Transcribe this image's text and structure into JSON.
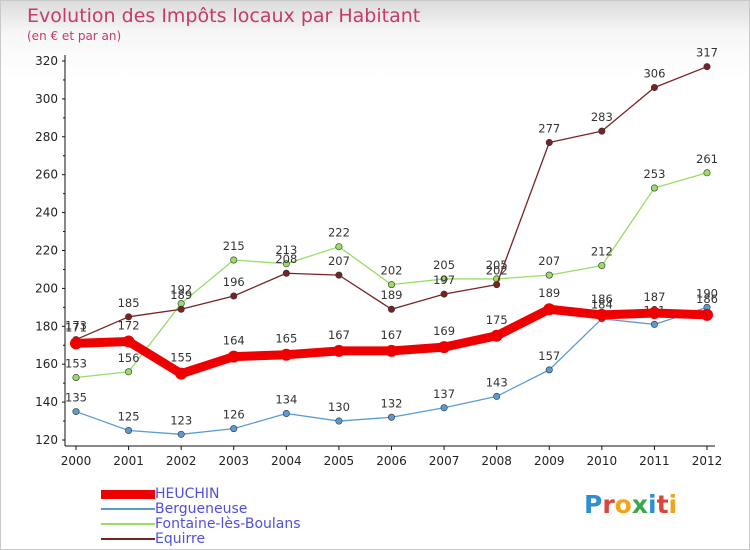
{
  "title": "Evolution des Impôts locaux par Habitant",
  "subtitle": "(en € et par an)",
  "logo": {
    "letters": [
      {
        "ch": "P",
        "color": "#2f8fd1"
      },
      {
        "ch": "r",
        "color": "#d8463c"
      },
      {
        "ch": "o",
        "color": "#f2a51b"
      },
      {
        "ch": "x",
        "color": "#3aa84a"
      },
      {
        "ch": "i",
        "color": "#2f8fd1"
      },
      {
        "ch": "t",
        "color": "#d8463c"
      },
      {
        "ch": "i",
        "color": "#f2a51b"
      }
    ]
  },
  "chart_data": {
    "type": "line",
    "title": "Evolution des Impôts locaux par Habitant",
    "subtitle": "(en € et par an)",
    "xlabel": "",
    "ylabel": "",
    "x": [
      "2000",
      "2001",
      "2002",
      "2003",
      "2004",
      "2005",
      "2006",
      "2007",
      "2008",
      "2009",
      "2010",
      "2011",
      "2012"
    ],
    "ylim": [
      120,
      320
    ],
    "yticks": [
      120,
      140,
      160,
      180,
      200,
      220,
      240,
      260,
      280,
      300,
      320
    ],
    "grid": false,
    "legend_position": "bottom-left",
    "series": [
      {
        "name": "HEUCHIN",
        "color": "#ee0000",
        "thick": true,
        "values": [
          171,
          172,
          155,
          164,
          165,
          167,
          167,
          169,
          175,
          189,
          186,
          187,
          186
        ]
      },
      {
        "name": "Bergueneuse",
        "color": "#5b9bd5",
        "thick": false,
        "values": [
          135,
          125,
          123,
          126,
          134,
          130,
          132,
          137,
          143,
          157,
          184,
          181,
          190
        ]
      },
      {
        "name": "Fontaine-lès-Boulans",
        "color": "#99dd66",
        "thick": false,
        "values": [
          153,
          156,
          192,
          215,
          213,
          222,
          202,
          205,
          205,
          207,
          212,
          253,
          261
        ]
      },
      {
        "name": "Equirre",
        "color": "#7a2222",
        "thick": false,
        "values": [
          173,
          185,
          189,
          196,
          208,
          207,
          189,
          197,
          202,
          277,
          283,
          306,
          317
        ]
      }
    ]
  }
}
